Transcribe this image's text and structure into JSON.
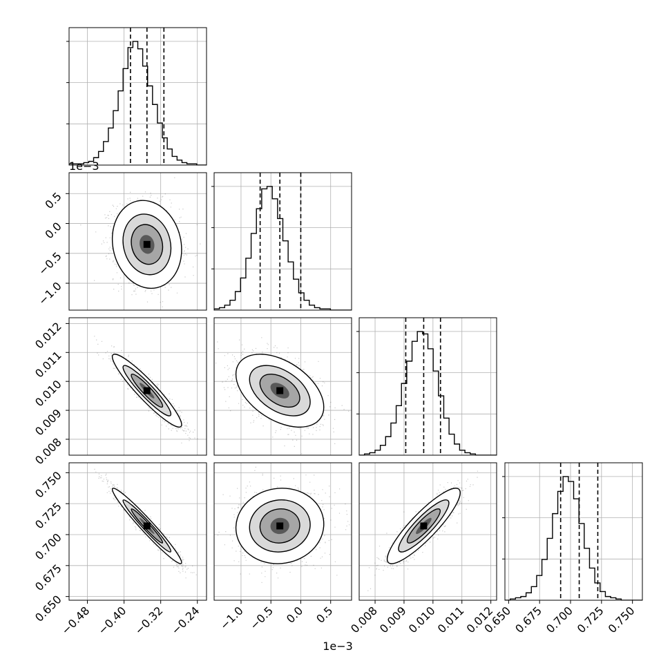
{
  "chart_data": {
    "type": "corner",
    "grid": true,
    "parameters": [
      {
        "index": 0,
        "range": [
          -0.52,
          -0.22
        ],
        "ticks": [
          -0.48,
          -0.4,
          -0.32,
          -0.24
        ],
        "tick_labels": [
          "−0.48",
          "−0.40",
          "−0.32",
          "−0.24"
        ],
        "offset_label": "",
        "quantiles": [
          -0.386,
          -0.35,
          -0.313
        ],
        "mean": -0.35,
        "sd": 0.036
      },
      {
        "index": 1,
        "range": [
          -1.45,
          0.85
        ],
        "ticks": [
          -1.0,
          -0.5,
          0.0,
          0.5
        ],
        "tick_labels": [
          "−1.0",
          "−0.5",
          "0.0",
          "0.5"
        ],
        "offset_label": "1e−3",
        "quantiles": [
          -0.68,
          -0.35,
          0.0
        ],
        "mean": -0.35,
        "sd": 0.35
      },
      {
        "index": 2,
        "range": [
          0.00745,
          0.0122
        ],
        "ticks": [
          0.008,
          0.009,
          0.01,
          0.011,
          0.012
        ],
        "tick_labels": [
          "0.008",
          "0.009",
          "0.010",
          "0.011",
          "0.012"
        ],
        "offset_label": "",
        "quantiles": [
          0.00906,
          0.00968,
          0.01026
        ],
        "mean": 0.00968,
        "sd": 0.0006
      },
      {
        "index": 3,
        "range": [
          0.647,
          0.758
        ],
        "ticks": [
          0.65,
          0.675,
          0.7,
          0.725,
          0.75
        ],
        "tick_labels": [
          "0.650",
          "0.675",
          "0.700",
          "0.725",
          "0.750"
        ],
        "offset_label": "",
        "quantiles": [
          0.692,
          0.707,
          0.722
        ],
        "mean": 0.707,
        "sd": 0.0145
      }
    ],
    "correlations": {
      "1-0": -0.12,
      "2-0": -0.93,
      "2-1": -0.45,
      "3-0": -0.97,
      "3-1": 0.05,
      "3-2": 0.88
    },
    "histograms": {
      "0": {
        "bins": 28,
        "heights": [
          1,
          1,
          1,
          2,
          3,
          6,
          11,
          19,
          30,
          44,
          60,
          78,
          95,
          100,
          94,
          80,
          64,
          49,
          34,
          22,
          13,
          7,
          4,
          2,
          1,
          1,
          0,
          0
        ]
      },
      "1": {
        "bins": 26,
        "heights": [
          1,
          2,
          4,
          8,
          15,
          26,
          42,
          62,
          82,
          98,
          100,
          90,
          74,
          56,
          39,
          25,
          14,
          8,
          4,
          2,
          1,
          1,
          0,
          0,
          0,
          0
        ]
      },
      "2": {
        "bins": 26,
        "heights": [
          0,
          1,
          2,
          4,
          8,
          15,
          26,
          40,
          58,
          76,
          92,
          100,
          98,
          86,
          68,
          48,
          30,
          17,
          9,
          4,
          2,
          1,
          0,
          0,
          0,
          0
        ]
      },
      "3": {
        "bins": 26,
        "heights": [
          0,
          1,
          2,
          3,
          6,
          11,
          20,
          33,
          50,
          70,
          88,
          100,
          96,
          82,
          62,
          42,
          26,
          14,
          7,
          3,
          2,
          1,
          0,
          0,
          0,
          0
        ]
      }
    }
  }
}
